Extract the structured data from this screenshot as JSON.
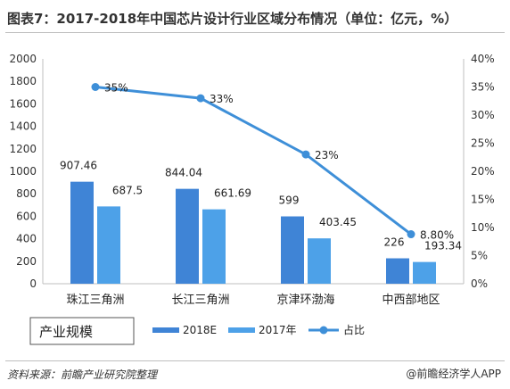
{
  "title": "图表7：2017-2018年中国芯片设计行业区域分布情况（单位：亿元，%）",
  "footer": {
    "source": "资料来源：前瞻产业研究院整理",
    "brand": "@前瞻经济学人APP"
  },
  "legend_box_label": "产业规模",
  "chart_data": {
    "type": "bar",
    "categories": [
      "珠江三角洲",
      "长江三角洲",
      "京津环渤海",
      "中西部地区"
    ],
    "series": [
      {
        "name": "2018E",
        "type": "bar",
        "axis": "left",
        "values": [
          907.46,
          844.04,
          599,
          226
        ],
        "labels": [
          "907.46",
          "844.04",
          "599",
          "226"
        ],
        "color": "#3f84d6"
      },
      {
        "name": "2017年",
        "type": "bar",
        "axis": "left",
        "values": [
          687.5,
          661.69,
          403.45,
          193.34
        ],
        "labels": [
          "687.5",
          "661.69",
          "403.45",
          "193.34"
        ],
        "color": "#4da1e8"
      },
      {
        "name": "占比",
        "type": "line",
        "axis": "right",
        "values": [
          35,
          33,
          23,
          8.8
        ],
        "labels": [
          "35%",
          "33%",
          "23%",
          "8.80%"
        ],
        "color": "#3e8fd8"
      }
    ],
    "y_left": {
      "min": 0,
      "max": 2000,
      "ticks": [
        "0",
        "200",
        "400",
        "600",
        "800",
        "1000",
        "1200",
        "1400",
        "1600",
        "1800",
        "2000"
      ]
    },
    "y_right": {
      "min": 0,
      "max": 40,
      "ticks": [
        "0%",
        "5%",
        "10%",
        "15%",
        "20%",
        "25%",
        "30%",
        "35%",
        "40%"
      ]
    },
    "grid": false,
    "legend_position": "bottom"
  }
}
